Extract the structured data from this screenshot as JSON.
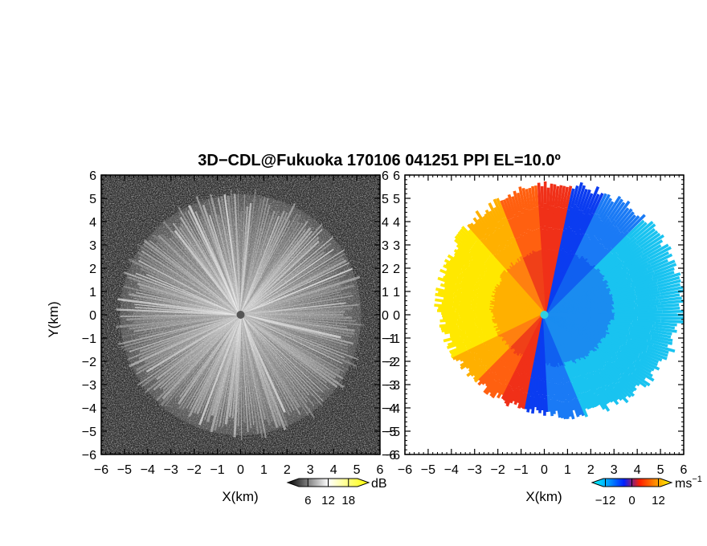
{
  "title": "3D−CDL@Fukuoka 170106 041251 PPI EL=10.0º",
  "chart_data": [
    {
      "type": "heatmap",
      "panel": "left",
      "quantity": "reflectivity",
      "xlabel": "X(km)",
      "ylabel": "Y(km)",
      "xlim": [
        -6,
        6
      ],
      "ylim": [
        -6,
        6
      ],
      "xticks": [
        "−6",
        "−5",
        "−4",
        "−3",
        "−2",
        "−1",
        "0",
        "1",
        "2",
        "3",
        "4",
        "5",
        "6"
      ],
      "yticks": [
        "−6",
        "−5",
        "−4",
        "−3",
        "−2",
        "−1",
        "0",
        "1",
        "2",
        "3",
        "4",
        "5",
        "6"
      ],
      "colorbar": {
        "unit": "dB",
        "ticks": [
          "6",
          "12",
          "18"
        ],
        "tick_values": [
          6,
          12,
          18
        ],
        "range": [
          0,
          24
        ],
        "colors": [
          "#000000",
          "#ffffff",
          "#ffff00"
        ]
      }
    },
    {
      "type": "heatmap",
      "panel": "right",
      "quantity": "radial velocity",
      "xlabel": "X(km)",
      "ylabel": "",
      "xlim": [
        -6,
        6
      ],
      "ylim": [
        -6,
        6
      ],
      "xticks": [
        "−6",
        "−5",
        "−4",
        "−3",
        "−2",
        "−1",
        "0",
        "1",
        "2",
        "3",
        "4",
        "5",
        "6"
      ],
      "yticks": [
        "−6",
        "−5",
        "−4",
        "−3",
        "−2",
        "−1",
        "0",
        "1",
        "2",
        "3",
        "4",
        "5",
        "6"
      ],
      "colorbar": {
        "unit": "ms",
        "unit_sup": "−1",
        "ticks": [
          "−12",
          "0",
          "12"
        ],
        "tick_values": [
          -12,
          0,
          12
        ],
        "range": [
          -18,
          18
        ],
        "colors": [
          "#00ffff",
          "#00a0ff",
          "#0020ff",
          "#ff2000",
          "#ff9000",
          "#ffff00"
        ]
      }
    }
  ]
}
